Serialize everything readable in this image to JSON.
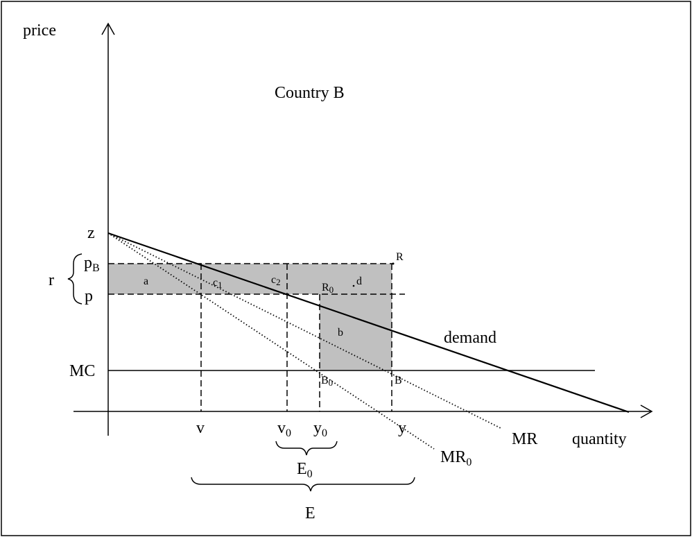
{
  "diagram": {
    "title": "Country B",
    "axes": {
      "y_label": "price",
      "x_label": "quantity"
    },
    "price_labels": {
      "z": "z",
      "p_base": "p",
      "p_sub": "B",
      "p": "p",
      "r": "r",
      "mc": "MC"
    },
    "quantity_labels": {
      "v": "v",
      "v0_base": "v",
      "v0_sub": "0",
      "y0_base": "y",
      "y0_sub": "0",
      "y": "y"
    },
    "region_labels": {
      "a": "a",
      "c1_base": "c",
      "c1_sub": "1",
      "c2_base": "c",
      "c2_sub": "2",
      "d": "d",
      "b": "b"
    },
    "point_labels": {
      "R": "R",
      "R0_base": "R",
      "R0_sub": "0",
      "B": "B",
      "B0_base": "B",
      "B0_sub": "0"
    },
    "curve_labels": {
      "demand": "demand",
      "mr": "MR",
      "mr0_base": "MR",
      "mr0_sub": "0"
    },
    "brace_labels": {
      "e0_base": "E",
      "e0_sub": "0",
      "e": "E"
    }
  }
}
